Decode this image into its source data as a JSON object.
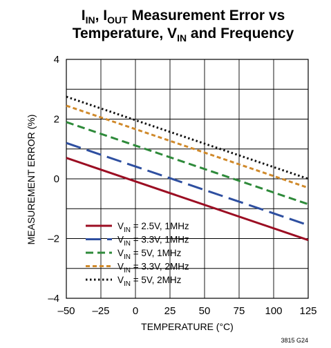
{
  "chart_data": {
    "type": "line",
    "title_parts": {
      "l1_a": "I",
      "l1_a_sub": "IN",
      "l1_b": ", I",
      "l1_b_sub": "OUT",
      "l1_c": " Measurement Error vs",
      "l2_a": "Temperature, V",
      "l2_a_sub": "IN",
      "l2_b": " and Frequency"
    },
    "xlabel": "TEMPERATURE (°C)",
    "ylabel": "MEASUREMENT ERROR (%)",
    "xlim": [
      -50,
      125
    ],
    "ylim": [
      -4,
      4
    ],
    "x_ticks": [
      -50,
      -25,
      0,
      25,
      50,
      75,
      100,
      125
    ],
    "x_tick_labels": [
      "–50",
      "–25",
      "0",
      "25",
      "50",
      "75",
      "100",
      "125"
    ],
    "y_ticks": [
      -4,
      -2,
      0,
      2,
      4
    ],
    "y_tick_labels": [
      "–4",
      "–2",
      "0",
      "2",
      "4"
    ],
    "grid": true,
    "legend_position": "bottom-left",
    "figure_code": "3815 G24",
    "series": [
      {
        "label_pre": "V",
        "label_sub": "IN",
        "label_post": " = 2.5V, 1MHz",
        "color": "#9b0d22",
        "dash": "solid",
        "x": [
          -50,
          125
        ],
        "y": [
          0.7,
          -2.05
        ]
      },
      {
        "label_pre": "V",
        "label_sub": "IN",
        "label_post": " = 3.3V, 1MHz",
        "color": "#2e4fa0",
        "dash": "long-dash",
        "x": [
          -50,
          125
        ],
        "y": [
          1.2,
          -1.55
        ]
      },
      {
        "label_pre": "V",
        "label_sub": "IN",
        "label_post": " = 5V, 1MHz",
        "color": "#2e8a3a",
        "dash": "dash",
        "x": [
          -50,
          125
        ],
        "y": [
          1.9,
          -0.85
        ]
      },
      {
        "label_pre": "V",
        "label_sub": "IN",
        "label_post": " = 3.3V, 2MHz",
        "color": "#d08a2c",
        "dash": "short-dash",
        "x": [
          -50,
          125
        ],
        "y": [
          2.45,
          -0.3
        ]
      },
      {
        "label_pre": "V",
        "label_sub": "IN",
        "label_post": " = 5V, 2MHz",
        "color": "#111111",
        "dash": "dot",
        "x": [
          -50,
          125
        ],
        "y": [
          2.75,
          0.0
        ]
      }
    ]
  }
}
